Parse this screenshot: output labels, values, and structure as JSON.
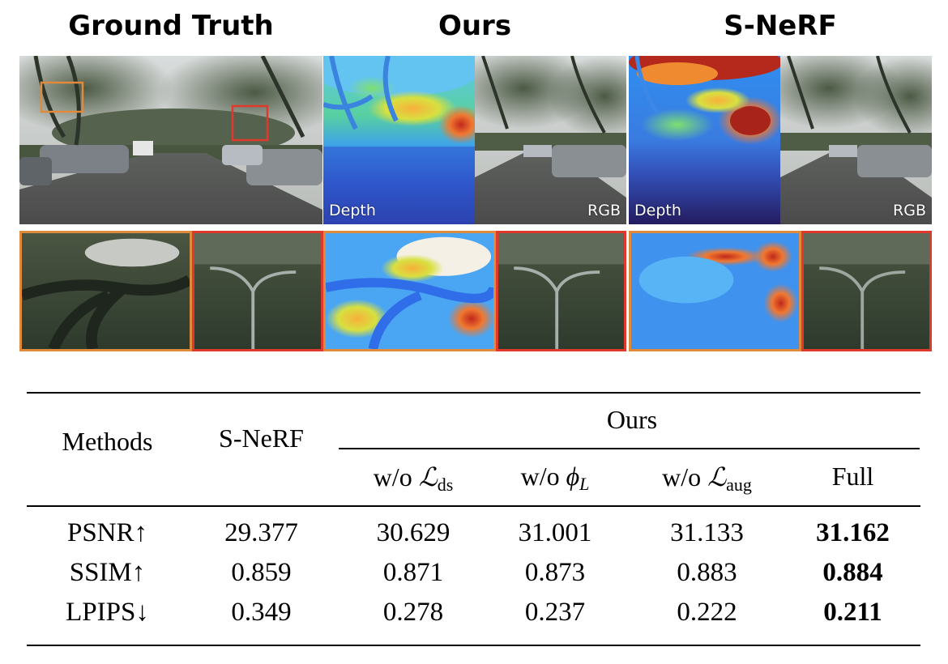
{
  "columns": {
    "ground_truth": "Ground Truth",
    "ours": "Ours",
    "snerf": "S-NeRF"
  },
  "panel_labels": {
    "depth": "Depth",
    "rgb": "RGB"
  },
  "colors": {
    "crop_orange": "#e08a3c",
    "crop_red": "#e0392b"
  },
  "table": {
    "methods_header": "Methods",
    "snerf_header": "S-NeRF",
    "ours_header": "Ours",
    "ablation_headers": {
      "wo_ds_prefix": "w/o ",
      "wo_ds_symbol": "ℒ",
      "wo_ds_sub": "ds",
      "wo_phi_prefix": "w/o ",
      "wo_phi_symbol": "ϕ",
      "wo_phi_sub": "L",
      "wo_aug_prefix": "w/o ",
      "wo_aug_symbol": "ℒ",
      "wo_aug_sub": "aug",
      "full": "Full"
    },
    "rows": [
      {
        "metric": "PSNR↑",
        "snerf": "29.377",
        "wo_ds": "30.629",
        "wo_phi": "31.001",
        "wo_aug": "31.133",
        "full": "31.162"
      },
      {
        "metric": "SSIM↑",
        "snerf": "0.859",
        "wo_ds": "0.871",
        "wo_phi": "0.873",
        "wo_aug": "0.883",
        "full": "0.884"
      },
      {
        "metric": "LPIPS↓",
        "snerf": "0.349",
        "wo_ds": "0.278",
        "wo_phi": "0.237",
        "wo_aug": "0.222",
        "full": "0.211"
      }
    ]
  }
}
